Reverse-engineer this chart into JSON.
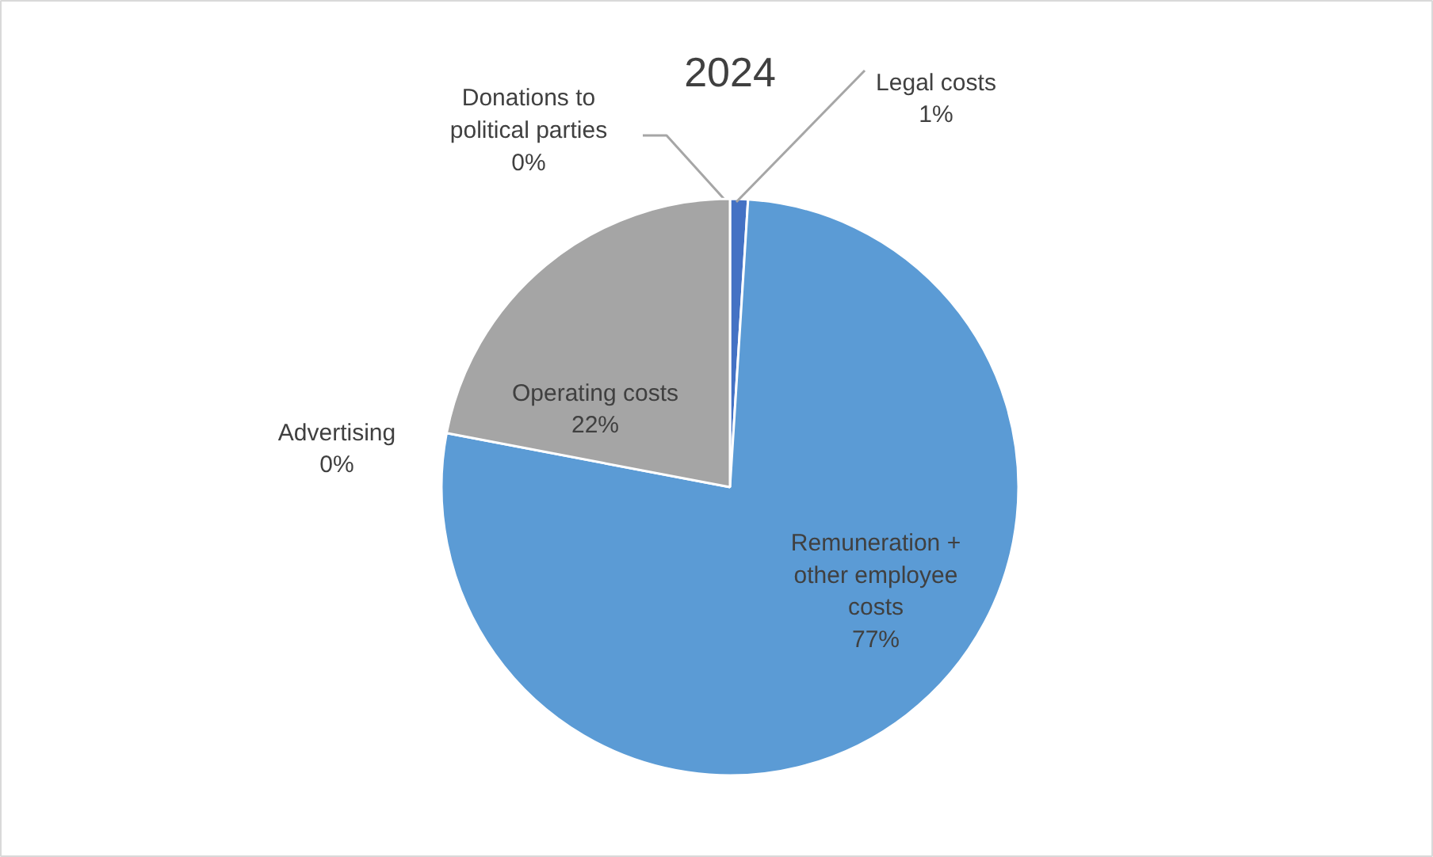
{
  "chart_data": {
    "type": "pie",
    "title": "2024",
    "categories": [
      "Donations to political parties",
      "Legal costs",
      "Remuneration + other employee costs",
      "Advertising",
      "Operating costs"
    ],
    "values": [
      0,
      1,
      77,
      0,
      22
    ],
    "colors": [
      "#ffc000",
      "#4472c4",
      "#5b9bd5",
      "#ed7d31",
      "#a5a5a5"
    ],
    "value_labels": [
      "0%",
      "1%",
      "77%",
      "0%",
      "22%"
    ]
  }
}
